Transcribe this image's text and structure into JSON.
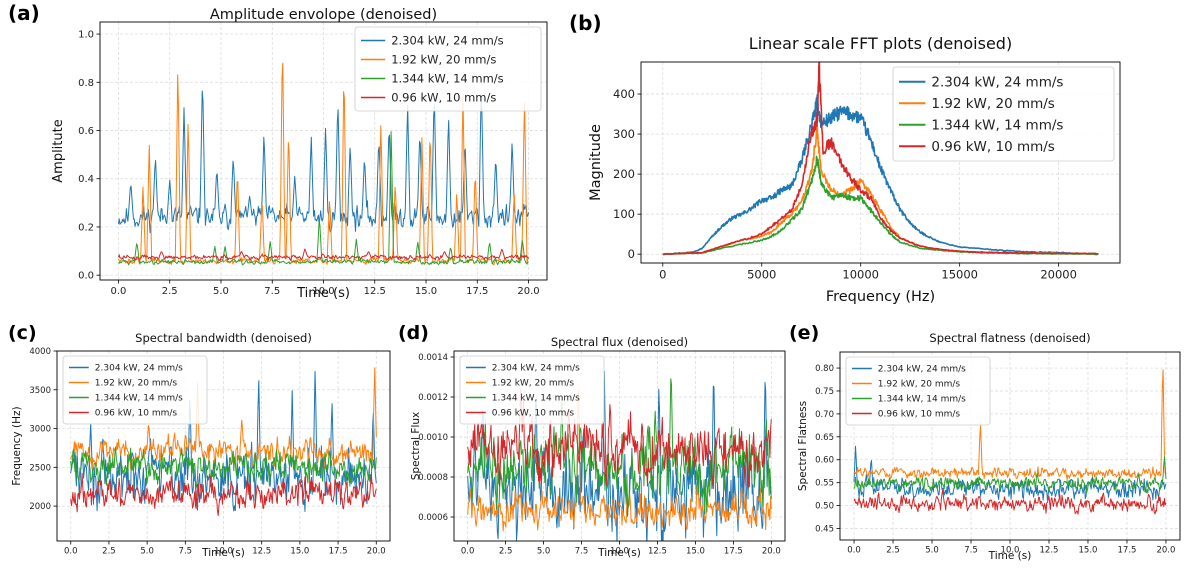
{
  "chart_data": [
    {
      "panel": "(a)",
      "type": "line",
      "title": "Amplitude envolope (denoised)",
      "xlabel": "Time (s)",
      "ylabel": "Amplitute",
      "xlim": [
        -0.9,
        20.9
      ],
      "ylim": [
        -0.02,
        1.05
      ],
      "xticks": [
        0.0,
        2.5,
        5.0,
        7.5,
        10.0,
        12.5,
        15.0,
        17.5,
        20.0
      ],
      "xtick_labels": [
        "0.0",
        "2.5",
        "5.0",
        "7.5",
        "10.0",
        "12.5",
        "15.0",
        "17.5",
        "20.0"
      ],
      "yticks": [
        0.0,
        0.2,
        0.4,
        0.6,
        0.8,
        1.0
      ],
      "ytick_labels": [
        "0.0",
        "0.2",
        "0.4",
        "0.6",
        "0.8",
        "1.0"
      ],
      "grid": true,
      "legend_position": "top-right",
      "series": [
        {
          "name": "2.304 kW, 24 mm/s",
          "color": "#1f77b4",
          "baseline": 0.24,
          "noise": 0.04,
          "peaks": [
            [
              0.6,
              0.39
            ],
            [
              1.8,
              0.5
            ],
            [
              2.5,
              0.4
            ],
            [
              3.2,
              0.7
            ],
            [
              4.1,
              0.84
            ],
            [
              4.8,
              0.45
            ],
            [
              5.6,
              0.5
            ],
            [
              6.4,
              0.33
            ],
            [
              7.1,
              0.6
            ],
            [
              8.6,
              0.42
            ],
            [
              9.4,
              0.58
            ],
            [
              10.1,
              0.62
            ],
            [
              10.7,
              0.74
            ],
            [
              11.3,
              0.55
            ],
            [
              12.0,
              0.5
            ],
            [
              12.7,
              0.58
            ],
            [
              13.2,
              0.64
            ],
            [
              14.1,
              0.72
            ],
            [
              14.7,
              0.61
            ],
            [
              15.4,
              0.77
            ],
            [
              16.1,
              0.67
            ],
            [
              16.9,
              0.57
            ],
            [
              17.7,
              0.8
            ],
            [
              18.4,
              0.5
            ],
            [
              19.2,
              0.57
            ]
          ]
        },
        {
          "name": "1.92 kW, 20 mm/s",
          "color": "#ff7f0e",
          "baseline": 0.06,
          "noise": 0.01,
          "peaks": [
            [
              1.2,
              0.38
            ],
            [
              1.5,
              0.55
            ],
            [
              2.9,
              0.9
            ],
            [
              3.4,
              0.67
            ],
            [
              5.8,
              0.45
            ],
            [
              7.0,
              0.32
            ],
            [
              8.0,
              1.0
            ],
            [
              8.3,
              0.62
            ],
            [
              10.3,
              0.33
            ],
            [
              11.0,
              0.88
            ],
            [
              12.8,
              0.65
            ],
            [
              13.5,
              0.4
            ],
            [
              14.8,
              0.58
            ],
            [
              15.2,
              0.63
            ],
            [
              16.5,
              0.35
            ],
            [
              16.8,
              0.76
            ],
            [
              17.4,
              0.45
            ],
            [
              19.3,
              0.35
            ],
            [
              19.8,
              0.76
            ]
          ]
        },
        {
          "name": "1.344 kW, 14 mm/s",
          "color": "#2ca02c",
          "baseline": 0.055,
          "noise": 0.008,
          "peaks": [
            [
              0.9,
              0.14
            ],
            [
              4.7,
              0.12
            ],
            [
              5.2,
              0.12
            ],
            [
              7.4,
              0.14
            ],
            [
              9.8,
              0.25
            ],
            [
              11.6,
              0.15
            ],
            [
              13.3,
              0.62
            ],
            [
              14.6,
              0.14
            ],
            [
              16.2,
              0.12
            ],
            [
              18.1,
              0.14
            ],
            [
              19.7,
              0.15
            ]
          ]
        },
        {
          "name": "0.96 kW, 10 mm/s",
          "color": "#d62728",
          "baseline": 0.075,
          "noise": 0.008,
          "peaks": [
            [
              2.1,
              0.1
            ],
            [
              6.0,
              0.1
            ],
            [
              9.1,
              0.11
            ],
            [
              12.2,
              0.1
            ],
            [
              15.9,
              0.1
            ],
            [
              18.7,
              0.11
            ]
          ]
        }
      ]
    },
    {
      "panel": "(b)",
      "type": "line",
      "title": "Linear scale FFT plots (denoised)",
      "xlabel": "Frequency (Hz)",
      "ylabel": "Magnitude",
      "xlim": [
        -1100,
        23100
      ],
      "ylim": [
        -22,
        480
      ],
      "xticks": [
        0,
        5000,
        10000,
        15000,
        20000
      ],
      "xtick_labels": [
        "0",
        "5000",
        "10000",
        "15000",
        "20000"
      ],
      "yticks": [
        0,
        100,
        200,
        300,
        400
      ],
      "ytick_labels": [
        "0",
        "100",
        "200",
        "300",
        "400"
      ],
      "grid": true,
      "legend_position": "top-right",
      "series": [
        {
          "name": "2.304 kW, 24 mm/s",
          "color": "#1f77b4",
          "x": [
            0,
            1500,
            2000,
            2500,
            3000,
            3500,
            4000,
            4500,
            5000,
            5500,
            6000,
            6500,
            7000,
            7500,
            7800,
            8000,
            8500,
            9000,
            9500,
            10000,
            10500,
            11000,
            11500,
            12000,
            12500,
            13000,
            13500,
            14000,
            15000,
            16000,
            17000,
            18000,
            19000,
            20000,
            21000,
            22000
          ],
          "values": [
            0,
            5,
            15,
            45,
            70,
            90,
            100,
            115,
            135,
            140,
            160,
            170,
            230,
            320,
            380,
            325,
            340,
            355,
            350,
            340,
            285,
            215,
            160,
            110,
            78,
            55,
            42,
            30,
            18,
            14,
            10,
            7,
            5,
            4,
            2,
            1
          ]
        },
        {
          "name": "1.92 kW, 20 mm/s",
          "color": "#ff7f0e",
          "x": [
            0,
            2000,
            3000,
            4000,
            5000,
            5500,
            6000,
            6500,
            7000,
            7500,
            7800,
            8000,
            8500,
            9000,
            9500,
            10000,
            10500,
            11000,
            11500,
            12000,
            13000,
            14000,
            15000,
            16000,
            18000,
            20000,
            22000
          ],
          "values": [
            0,
            4,
            20,
            35,
            45,
            55,
            80,
            100,
            130,
            200,
            310,
            210,
            160,
            150,
            160,
            185,
            150,
            110,
            70,
            40,
            20,
            12,
            7,
            5,
            3,
            2,
            1
          ]
        },
        {
          "name": "1.344 kW, 14 mm/s",
          "color": "#2ca02c",
          "x": [
            0,
            2000,
            3000,
            4000,
            5000,
            5500,
            6000,
            6500,
            7000,
            7500,
            7800,
            8000,
            8500,
            9000,
            9500,
            10000,
            10500,
            11000,
            11500,
            12000,
            13000,
            14000,
            15000,
            16000,
            18000,
            20000,
            22000
          ],
          "values": [
            0,
            3,
            15,
            25,
            35,
            45,
            60,
            85,
            110,
            180,
            240,
            180,
            140,
            150,
            140,
            140,
            110,
            80,
            50,
            30,
            15,
            10,
            6,
            4,
            2,
            1,
            0
          ]
        },
        {
          "name": "0.96 kW, 10 mm/s",
          "color": "#d62728",
          "x": [
            0,
            2000,
            3000,
            4000,
            5000,
            5500,
            6000,
            6500,
            7000,
            7500,
            7800,
            7900,
            8100,
            8500,
            9000,
            9500,
            10000,
            10500,
            11000,
            11500,
            12000,
            13000,
            14000,
            15000,
            16000,
            18000,
            20000,
            22000
          ],
          "values": [
            0,
            4,
            20,
            35,
            50,
            70,
            90,
            110,
            170,
            300,
            335,
            470,
            260,
            280,
            230,
            190,
            160,
            140,
            90,
            60,
            40,
            20,
            12,
            7,
            5,
            3,
            2,
            1
          ]
        }
      ]
    },
    {
      "panel": "(c)",
      "type": "line",
      "title": "Spectral bandwidth (denoised)",
      "xlabel": "Time (s)",
      "ylabel": "Frequency (Hz)",
      "xlim": [
        -0.9,
        20.9
      ],
      "ylim": [
        1550,
        4000
      ],
      "xticks": [
        0.0,
        2.5,
        5.0,
        7.5,
        10.0,
        12.5,
        15.0,
        17.5,
        20.0
      ],
      "xtick_labels": [
        "0.0",
        "2.5",
        "5.0",
        "7.5",
        "10.0",
        "12.5",
        "15.0",
        "17.5",
        "20.0"
      ],
      "yticks": [
        2000,
        2500,
        3000,
        3500,
        4000
      ],
      "ytick_labels": [
        "2000",
        "2500",
        "3000",
        "3500",
        "4000"
      ],
      "grid": true,
      "legend_position": "top-left",
      "series": [
        {
          "name": "2.304 kW, 24 mm/s",
          "color": "#1f77b4",
          "baseline": 2400,
          "noise": 280,
          "peaks": [
            [
              1.3,
              3100
            ],
            [
              7.8,
              3500
            ],
            [
              12.3,
              3700
            ],
            [
              14.5,
              3500
            ],
            [
              16.0,
              3850
            ],
            [
              17.1,
              3400
            ],
            [
              19.8,
              3300
            ]
          ]
        },
        {
          "name": "1.92 kW, 20 mm/s",
          "color": "#ff7f0e",
          "baseline": 2700,
          "noise": 130,
          "peaks": [
            [
              8.3,
              3600
            ],
            [
              19.9,
              3850
            ],
            [
              5.1,
              3100
            ],
            [
              11.2,
              3150
            ]
          ]
        },
        {
          "name": "1.344 kW, 14 mm/s",
          "color": "#2ca02c",
          "baseline": 2500,
          "noise": 160,
          "peaks": []
        },
        {
          "name": "0.96 kW, 10 mm/s",
          "color": "#d62728",
          "baseline": 2150,
          "noise": 150,
          "peaks": []
        }
      ]
    },
    {
      "panel": "(d)",
      "type": "line",
      "title": "Spectral flux (denoised)",
      "xlabel": "Time (s)",
      "ylabel": "Spectral Flux",
      "xlim": [
        -0.9,
        20.9
      ],
      "ylim": [
        0.00048,
        0.00143
      ],
      "xticks": [
        0.0,
        2.5,
        5.0,
        7.5,
        10.0,
        12.5,
        15.0,
        17.5,
        20.0
      ],
      "xtick_labels": [
        "0.0",
        "2.5",
        "5.0",
        "7.5",
        "10.0",
        "12.5",
        "15.0",
        "17.5",
        "20.0"
      ],
      "yticks": [
        0.0006,
        0.0008,
        0.001,
        0.0012,
        0.0014
      ],
      "ytick_labels": [
        "0.0006",
        "0.0008",
        "0.0010",
        "0.0012",
        "0.0014"
      ],
      "grid": true,
      "legend_position": "top-left",
      "series": [
        {
          "name": "2.304 kW, 24 mm/s",
          "color": "#1f77b4",
          "baseline": 0.00072,
          "noise": 0.00018,
          "peaks": [
            [
              1.0,
              0.00122
            ],
            [
              4.5,
              0.00128
            ],
            [
              9.0,
              0.00134
            ],
            [
              12.6,
              0.0013
            ],
            [
              16.2,
              0.00138
            ],
            [
              19.6,
              0.00138
            ]
          ]
        },
        {
          "name": "1.92 kW, 20 mm/s",
          "color": "#ff7f0e",
          "baseline": 0.00064,
          "noise": 7e-05,
          "peaks": [
            [
              7.3,
              0.00135
            ]
          ]
        },
        {
          "name": "1.344 kW, 14 mm/s",
          "color": "#2ca02c",
          "baseline": 0.00085,
          "noise": 0.00014,
          "peaks": [
            [
              13.4,
              0.00138
            ],
            [
              6.2,
              0.0012
            ]
          ]
        },
        {
          "name": "0.96 kW, 10 mm/s",
          "color": "#d62728",
          "baseline": 0.00095,
          "noise": 0.00012,
          "peaks": [
            [
              3.5,
              0.00125
            ]
          ]
        }
      ]
    },
    {
      "panel": "(e)",
      "type": "line",
      "title": "Spectral flatness (denoised)",
      "xlabel": "Time (s)",
      "ylabel": "Spectral Flatness",
      "xlim": [
        -0.9,
        20.9
      ],
      "ylim": [
        0.425,
        0.835
      ],
      "xticks": [
        0.0,
        2.5,
        5.0,
        7.5,
        10.0,
        12.5,
        15.0,
        17.5,
        20.0
      ],
      "xtick_labels": [
        "0.0",
        "2.5",
        "5.0",
        "7.5",
        "10.0",
        "12.5",
        "15.0",
        "17.5",
        "20.0"
      ],
      "yticks": [
        0.45,
        0.5,
        0.55,
        0.6,
        0.65,
        0.7,
        0.75,
        0.8
      ],
      "ytick_labels": [
        "0.45",
        "0.50",
        "0.55",
        "0.60",
        "0.65",
        "0.70",
        "0.75",
        "0.80"
      ],
      "grid": true,
      "legend_position": "top-left",
      "series": [
        {
          "name": "2.304 kW, 24 mm/s",
          "color": "#1f77b4",
          "baseline": 0.535,
          "noise": 0.018,
          "peaks": [
            [
              0.1,
              0.635
            ],
            [
              1.1,
              0.61
            ]
          ]
        },
        {
          "name": "1.92 kW, 20 mm/s",
          "color": "#ff7f0e",
          "baseline": 0.572,
          "noise": 0.01,
          "peaks": [
            [
              8.1,
              0.685
            ],
            [
              19.8,
              0.825
            ]
          ]
        },
        {
          "name": "1.344 kW, 14 mm/s",
          "color": "#2ca02c",
          "baseline": 0.548,
          "noise": 0.012,
          "peaks": [
            [
              19.9,
              0.61
            ]
          ]
        },
        {
          "name": "0.96 kW, 10 mm/s",
          "color": "#d62728",
          "baseline": 0.505,
          "noise": 0.014,
          "peaks": []
        }
      ]
    }
  ]
}
